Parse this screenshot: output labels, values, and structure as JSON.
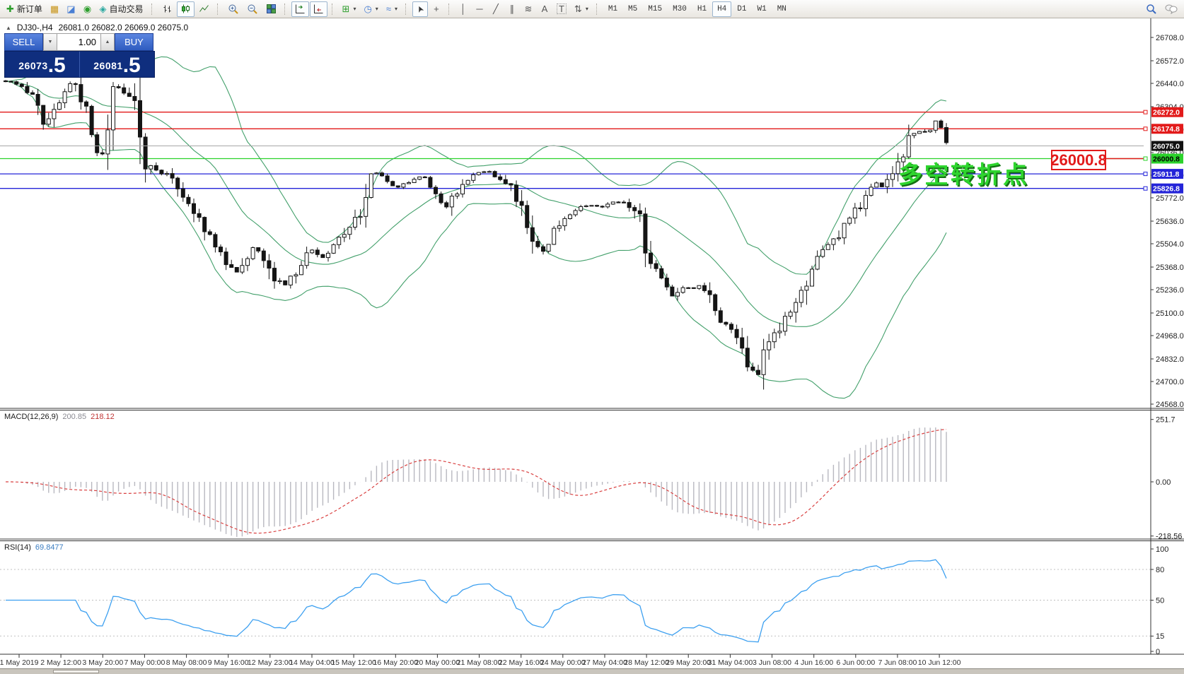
{
  "toolbar": {
    "new_order_label": "新订单",
    "autotrade_label": "自动交易",
    "timeframes": [
      "M1",
      "M5",
      "M15",
      "M30",
      "H1",
      "H4",
      "D1",
      "W1",
      "MN"
    ],
    "active_timeframe": "H4"
  },
  "icons": {
    "collapse": "▲",
    "dropdown": "▾",
    "spin_up": "▲",
    "spin_down": "▼",
    "new_order": "✚",
    "new_chart": "▦",
    "profiles": "◪",
    "signals": "◉",
    "autotrade": "◈",
    "tile_windows": "▦",
    "new_window": "⊞",
    "periods": "◷",
    "indicators": "≈",
    "cursor": "➤",
    "crosshair": "+",
    "vline": "│",
    "hline": "─",
    "trendline": "╱",
    "channel": "∥",
    "fibonacci": "≋",
    "text_tool": "A",
    "label_tool": "T",
    "arrows_tool": "⇅"
  },
  "chart_header": {
    "title": "DJ30-,H4",
    "ohlc": "26081.0 26082.0 26069.0 26075.0"
  },
  "trade_panel": {
    "sell_label": "SELL",
    "buy_label": "BUY",
    "volume": "1.00",
    "sell_price_main": "26073",
    "sell_price_big": ".5",
    "buy_price_main": "26081",
    "buy_price_big": ".5"
  },
  "macd_label": {
    "name": "MACD(12,26,9)",
    "main": "200.85",
    "signal": "218.12"
  },
  "rsi_label": {
    "name": "RSI(14)",
    "value": "69.8477"
  },
  "annotation": {
    "text": "多空转折点",
    "price_box": "26000.8"
  },
  "chart_data": {
    "type": "candlestick",
    "symbol": "DJ30-",
    "timeframe": "H4",
    "current": {
      "open": 26081.0,
      "high": 26082.0,
      "low": 26069.0,
      "close": 26075.0,
      "bid": 26073.5,
      "ask": 26081.5
    },
    "y_axis": {
      "top_price": 26708,
      "bottom_price": 24568,
      "ticks": [
        26708,
        26572,
        26440,
        26304,
        26172,
        26036,
        25904,
        25772,
        25636,
        25504,
        25368,
        25236,
        25100,
        24968,
        24832,
        24700,
        24568
      ]
    },
    "x_axis": [
      "1 May 2019",
      "2 May 12:00",
      "3 May 20:00",
      "7 May 00:00",
      "8 May 08:00",
      "9 May 16:00",
      "12 May 23:00",
      "14 May 04:00",
      "15 May 12:00",
      "16 May 20:00",
      "20 May 00:00",
      "21 May 08:00",
      "22 May 16:00",
      "24 May 00:00",
      "27 May 04:00",
      "28 May 12:00",
      "29 May 20:00",
      "31 May 04:00",
      "3 Jun 08:00",
      "4 Jun 16:00",
      "6 Jun 00:00",
      "7 Jun 08:00",
      "10 Jun 12:00"
    ],
    "levels": [
      {
        "price": 26272.0,
        "color": "#e21a1a",
        "text_color": "#ffffff",
        "label": "26272.0"
      },
      {
        "price": 26174.8,
        "color": "#e21a1a",
        "text_color": "#ffffff",
        "label": "26174.8"
      },
      {
        "price": 26000.8,
        "color": "#2bd22b",
        "text_color": "#000000",
        "label": "26000.8"
      },
      {
        "price": 25911.8,
        "color": "#2424d8",
        "text_color": "#ffffff",
        "label": "25911.8"
      },
      {
        "price": 25826.8,
        "color": "#2424d8",
        "text_color": "#ffffff",
        "label": "25826.8"
      }
    ],
    "current_price": {
      "value": 26075.0,
      "label": "26075.0"
    },
    "close_anchors": [
      [
        8,
        26455
      ],
      [
        30,
        26420
      ],
      [
        55,
        26340
      ],
      [
        60,
        26180
      ],
      [
        75,
        26260
      ],
      [
        100,
        26450
      ],
      [
        112,
        26400
      ],
      [
        125,
        26205
      ],
      [
        138,
        26030
      ],
      [
        148,
        26060
      ],
      [
        162,
        26430
      ],
      [
        178,
        26380
      ],
      [
        192,
        26300
      ],
      [
        205,
        25980
      ],
      [
        220,
        25930
      ],
      [
        240,
        25900
      ],
      [
        258,
        25800
      ],
      [
        275,
        25690
      ],
      [
        295,
        25560
      ],
      [
        308,
        25460
      ],
      [
        322,
        25390
      ],
      [
        335,
        25340
      ],
      [
        345,
        25410
      ],
      [
        360,
        25500
      ],
      [
        372,
        25440
      ],
      [
        388,
        25310
      ],
      [
        402,
        25260
      ],
      [
        415,
        25320
      ],
      [
        428,
        25400
      ],
      [
        440,
        25470
      ],
      [
        455,
        25420
      ],
      [
        468,
        25470
      ],
      [
        482,
        25540
      ],
      [
        495,
        25600
      ],
      [
        510,
        25700
      ],
      [
        522,
        25870
      ],
      [
        535,
        25930
      ],
      [
        548,
        25860
      ],
      [
        562,
        25830
      ],
      [
        578,
        25870
      ],
      [
        592,
        25900
      ],
      [
        605,
        25870
      ],
      [
        618,
        25760
      ],
      [
        630,
        25710
      ],
      [
        645,
        25810
      ],
      [
        660,
        25880
      ],
      [
        675,
        25910
      ],
      [
        688,
        25935
      ],
      [
        700,
        25900
      ],
      [
        715,
        25860
      ],
      [
        728,
        25790
      ],
      [
        740,
        25660
      ],
      [
        755,
        25520
      ],
      [
        766,
        25440
      ],
      [
        778,
        25550
      ],
      [
        792,
        25620
      ],
      [
        806,
        25670
      ],
      [
        820,
        25710
      ],
      [
        835,
        25730
      ],
      [
        850,
        25720
      ],
      [
        865,
        25750
      ],
      [
        880,
        25745
      ],
      [
        893,
        25715
      ],
      [
        905,
        25640
      ],
      [
        916,
        25420
      ],
      [
        928,
        25360
      ],
      [
        940,
        25300
      ],
      [
        948,
        25190
      ],
      [
        958,
        25220
      ],
      [
        968,
        25260
      ],
      [
        978,
        25235
      ],
      [
        988,
        25260
      ],
      [
        998,
        25215
      ],
      [
        1008,
        25160
      ],
      [
        1018,
        25070
      ],
      [
        1030,
        25030
      ],
      [
        1042,
        24980
      ],
      [
        1052,
        24840
      ],
      [
        1062,
        24770
      ],
      [
        1070,
        24705
      ],
      [
        1078,
        24820
      ],
      [
        1088,
        24910
      ],
      [
        1098,
        24990
      ],
      [
        1108,
        25050
      ],
      [
        1118,
        25090
      ],
      [
        1128,
        25160
      ],
      [
        1138,
        25250
      ],
      [
        1148,
        25390
      ],
      [
        1158,
        25450
      ],
      [
        1168,
        25490
      ],
      [
        1178,
        25520
      ],
      [
        1188,
        25570
      ],
      [
        1198,
        25650
      ],
      [
        1208,
        25700
      ],
      [
        1218,
        25740
      ],
      [
        1228,
        25820
      ],
      [
        1238,
        25860
      ],
      [
        1246,
        25840
      ],
      [
        1256,
        25895
      ],
      [
        1266,
        25960
      ],
      [
        1276,
        26000
      ],
      [
        1286,
        26140
      ],
      [
        1296,
        26165
      ],
      [
        1306,
        26145
      ],
      [
        1316,
        26185
      ],
      [
        1326,
        26230
      ],
      [
        1334,
        26100
      ],
      [
        1342,
        26078
      ]
    ],
    "indicators": {
      "bollinger": {
        "period": 20,
        "deviation": 2,
        "color": "#43a06b"
      },
      "macd": {
        "params": "12,26,9",
        "main_value": 200.85,
        "signal_value": 218.12,
        "axis_ticks": [
          "251.7",
          "0.00",
          "-218.56"
        ],
        "histogram_color": "#b8b8c0",
        "signal_color": "#d94040"
      },
      "rsi": {
        "period": 14,
        "value": 69.8477,
        "axis_ticks": [
          "100",
          "80",
          "50",
          "15",
          "0"
        ],
        "levels": [
          80,
          50,
          15
        ],
        "line_color": "#3da0f0"
      }
    }
  }
}
